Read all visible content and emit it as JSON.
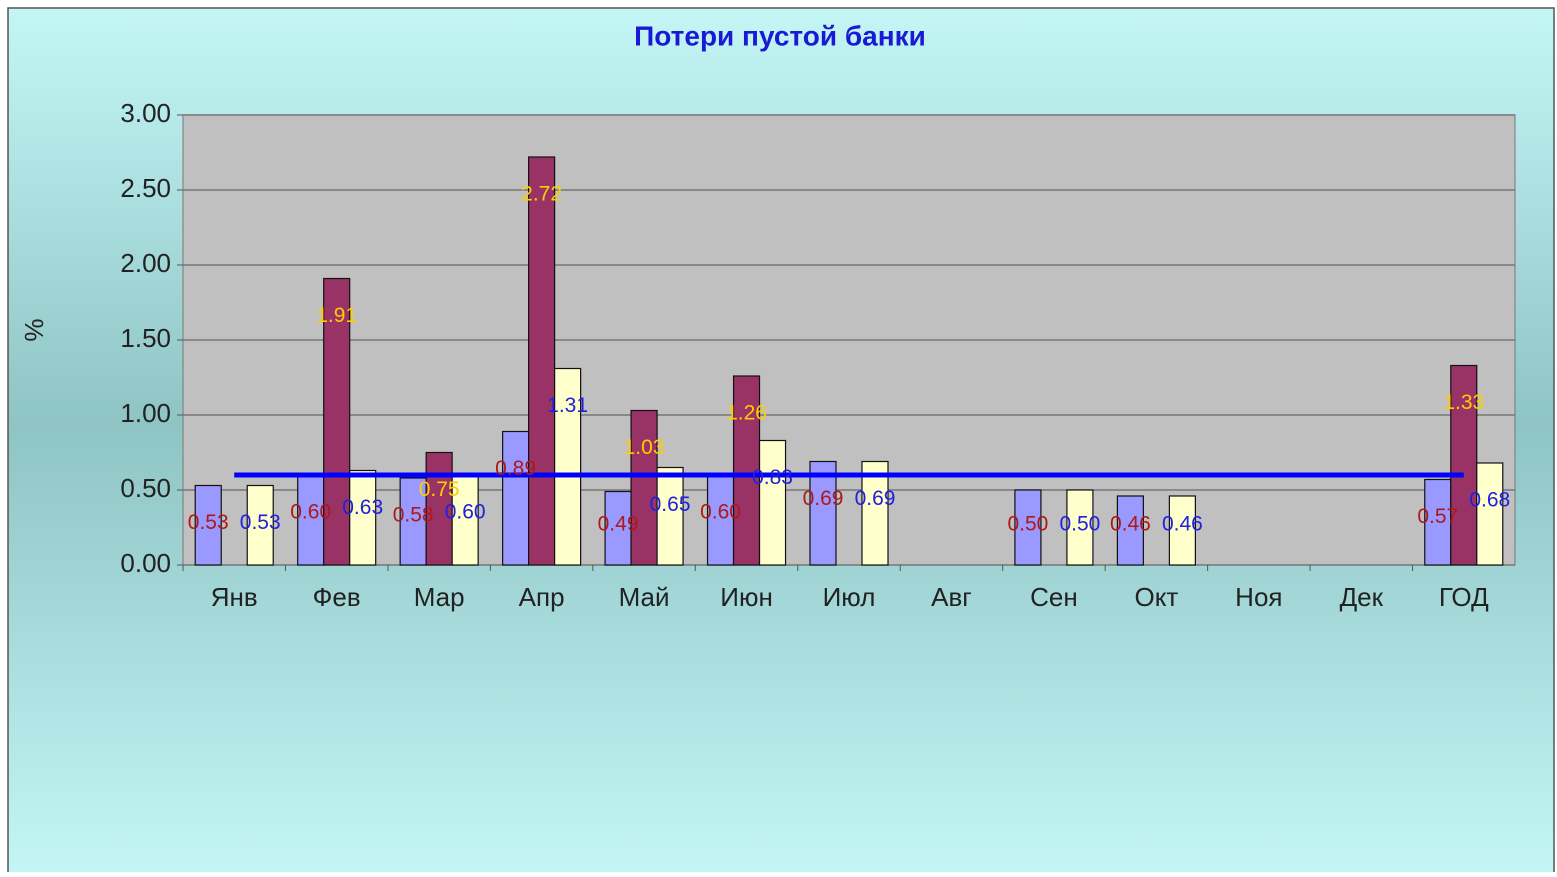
{
  "chart_data": {
    "type": "bar",
    "title": "Потери пустой банки",
    "y_label": "%",
    "categories": [
      "Янв",
      "Фев",
      "Мар",
      "Апр",
      "Май",
      "Июн",
      "Июл",
      "Авг",
      "Сен",
      "Окт",
      "Ноя",
      "Дек",
      "ГОД"
    ],
    "series": [
      {
        "color": "#9999ff",
        "label_color": "#b01818",
        "values": [
          0.53,
          0.6,
          0.58,
          0.89,
          0.49,
          0.6,
          0.69,
          null,
          0.5,
          0.46,
          null,
          null,
          0.57
        ],
        "value_labels": [
          "0.53",
          "0.60",
          "0.58",
          "0.89",
          "0.49",
          "0.60",
          "0.69",
          null,
          "0.50",
          "0.46",
          null,
          null,
          "0.57"
        ]
      },
      {
        "color": "#993366",
        "label_color": "#ffcc00",
        "values": [
          null,
          1.91,
          0.75,
          2.72,
          1.03,
          1.26,
          null,
          null,
          null,
          null,
          null,
          null,
          1.33
        ],
        "value_labels": [
          null,
          "1.91",
          "0.75",
          "2.72",
          "1.03",
          "1.26",
          null,
          null,
          null,
          null,
          null,
          null,
          "1.33"
        ]
      },
      {
        "color": "#ffffcc",
        "label_color": "#2020dd",
        "values": [
          0.53,
          0.63,
          0.6,
          1.31,
          0.65,
          0.83,
          0.69,
          null,
          0.5,
          0.46,
          null,
          null,
          0.68
        ],
        "value_labels": [
          "0.53",
          "0.63",
          "0.60",
          "1.31",
          "0.65",
          "0.83",
          "0.69",
          null,
          "0.50",
          "0.46",
          null,
          null,
          "0.68"
        ]
      },
      {
        "type": "line",
        "color": "#0000ff",
        "values": [
          0.6,
          0.6,
          0.6,
          0.6,
          0.6,
          0.6,
          0.6,
          0.6,
          0.6,
          0.6,
          0.6,
          0.6,
          0.6
        ]
      }
    ],
    "ylim": [
      0,
      3
    ],
    "yticks": [
      {
        "value": 0,
        "label": "0.00"
      },
      {
        "value": 0.5,
        "label": "0.50"
      },
      {
        "value": 1,
        "label": "1.00"
      },
      {
        "value": 1.5,
        "label": "1.50"
      },
      {
        "value": 2,
        "label": "2.00"
      },
      {
        "value": 2.5,
        "label": "2.50"
      },
      {
        "value": 3,
        "label": "3.00"
      }
    ],
    "grid": true
  }
}
